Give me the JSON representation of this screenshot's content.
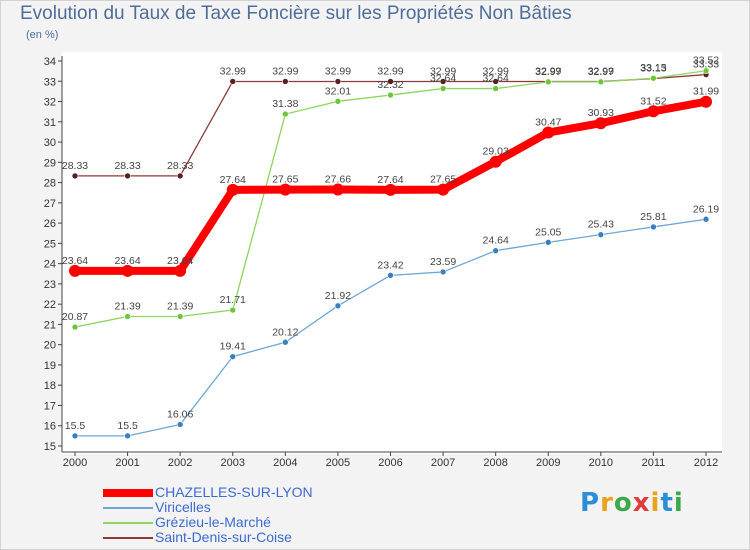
{
  "title": "Evolution du Taux de Taxe Foncière sur les Propriétés Non Bâties",
  "unit": "(en %)",
  "logo": {
    "text": "Proxiti",
    "colors": [
      "#2a8fd6",
      "#e8a21c",
      "#3da84a",
      "#e23b3b",
      "#e8a21c",
      "#2a8fd6",
      "#3da84a"
    ]
  },
  "chart_data": {
    "type": "line",
    "title": "Evolution du Taux de Taxe Foncière sur les Propriétés Non Bâties",
    "ylabel": "(en %)",
    "xlabel": "",
    "ylim": [
      15,
      34
    ],
    "yticks": [
      15,
      16,
      17,
      18,
      19,
      20,
      21,
      22,
      23,
      24,
      25,
      26,
      27,
      28,
      29,
      30,
      31,
      32,
      33,
      34
    ],
    "x": [
      "2000",
      "2001",
      "2002",
      "2003",
      "2004",
      "2005",
      "2006",
      "2007",
      "2008",
      "2009",
      "2010",
      "2011",
      "2012"
    ],
    "series": [
      {
        "name": "CHAZELLES-SUR-LYON",
        "color": "#ff0000",
        "marker": "#ff0000",
        "width": 8,
        "values": [
          23.64,
          23.64,
          23.64,
          27.64,
          27.65,
          27.66,
          27.64,
          27.65,
          29.03,
          30.47,
          30.93,
          31.52,
          31.99
        ],
        "labels": [
          "23.64",
          "23.64",
          "23.64",
          "27.64",
          "27.65",
          "27.66",
          "27.64",
          "27.65",
          "29.03",
          "30.47",
          "30.93",
          "31.52",
          "31.99"
        ]
      },
      {
        "name": "Viricelles",
        "color": "#6fa6d6",
        "marker": "#3a7fc0",
        "width": 1.3,
        "values": [
          15.5,
          15.5,
          16.06,
          19.41,
          20.12,
          21.92,
          23.42,
          23.59,
          24.64,
          25.05,
          25.43,
          25.81,
          26.19
        ],
        "labels": [
          "15.5",
          "15.5",
          "16.06",
          "19.41",
          "20.12",
          "21.92",
          "23.42",
          "23.59",
          "24.64",
          "25.05",
          "25.43",
          "25.81",
          "26.19"
        ]
      },
      {
        "name": "Grézieu-le-Marché",
        "color": "#8fd45e",
        "marker": "#6cc63a",
        "width": 1.3,
        "values": [
          20.87,
          21.39,
          21.39,
          21.71,
          31.38,
          32.01,
          32.32,
          32.64,
          32.64,
          32.97,
          32.97,
          33.15,
          33.52
        ],
        "labels": [
          "20.87",
          "21.39",
          "21.39",
          "21.71",
          "31.38",
          "32.01",
          "32.32",
          "32.64",
          "32.64",
          "32.97",
          "32.97",
          "33.15",
          "33.52"
        ]
      },
      {
        "name": "Saint-Denis-sur-Coise",
        "color": "#8b3a3a",
        "marker": "#5b1f1f",
        "width": 1.3,
        "values": [
          28.33,
          28.33,
          28.33,
          32.99,
          32.99,
          32.99,
          32.99,
          32.99,
          32.99,
          32.99,
          32.99,
          33.13,
          33.33
        ],
        "labels": [
          "28.33",
          "28.33",
          "28.33",
          "32.99",
          "32.99",
          "32.99",
          "32.99",
          "32.99",
          "32.99",
          "32.99",
          "32.99",
          "33.13",
          "33.33"
        ]
      }
    ],
    "legend": "bottom-left",
    "grid": false
  }
}
